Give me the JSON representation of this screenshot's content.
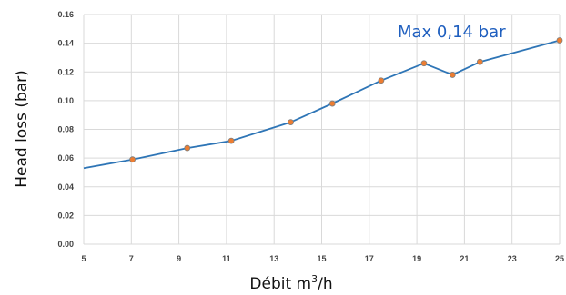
{
  "chart_data": {
    "type": "line",
    "title": "",
    "xlabel": "Débit m",
    "xlabel_sup": "3",
    "xlabel_suffix": "/h",
    "ylabel": "Head loss (bar)",
    "xlim": [
      5,
      25
    ],
    "ylim": [
      0,
      0.16
    ],
    "x_ticks": [
      5,
      7,
      9,
      11,
      13,
      15,
      17,
      19,
      21,
      23,
      25
    ],
    "y_ticks": [
      0,
      0.02,
      0.04,
      0.06,
      0.08,
      0.1,
      0.12,
      0.14,
      0.16
    ],
    "x_tick_labels": [
      "5",
      "7",
      "9",
      "11",
      "13",
      "15",
      "17",
      "19",
      "21",
      "23",
      "25"
    ],
    "y_tick_labels": [
      "0.00",
      "0.02",
      "0.04",
      "0.06",
      "0.08",
      "0.10",
      "0.12",
      "0.14",
      "0.16"
    ],
    "grid": true,
    "legend": "none",
    "series": [
      {
        "x": [
          5.0,
          7.05,
          9.35,
          11.2,
          13.7,
          15.45,
          17.5,
          19.3,
          20.5,
          21.65,
          25.0
        ],
        "y": [
          0.053,
          0.059,
          0.067,
          0.072,
          0.085,
          0.098,
          0.114,
          0.126,
          0.118,
          0.127,
          0.142
        ],
        "markers": [
          false,
          true,
          true,
          true,
          true,
          true,
          true,
          true,
          true,
          true,
          true
        ]
      }
    ],
    "annotation": {
      "text": "Max 0,14 bar"
    }
  },
  "colors": {
    "line": "#2e75b6",
    "marker_fill": "#ed7d31",
    "marker_stroke": "#7f7f7f",
    "grid": "#d9d9d9",
    "annotation": "#1f5fbf"
  }
}
